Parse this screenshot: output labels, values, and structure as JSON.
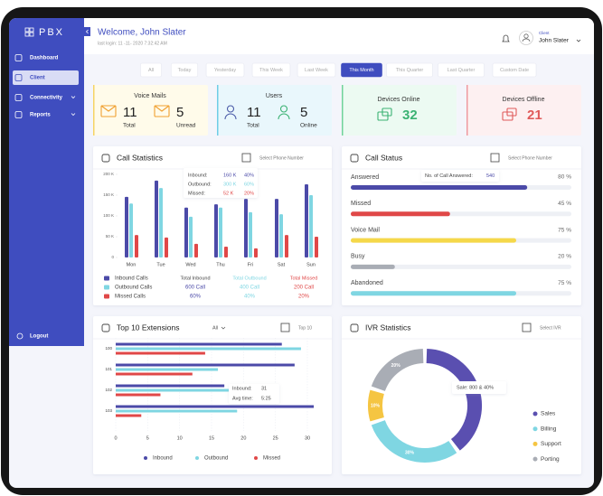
{
  "sidebar": {
    "logo": "PBX",
    "menu": [
      "Dashboard",
      "Client",
      "Connectivity",
      "Reports"
    ],
    "active": "Client",
    "logout": "Logout"
  },
  "header": {
    "welcome": "Welcome, John Slater",
    "last_login": "last login: 11 -11- 2020 7:32:42 AM",
    "role": "Client",
    "user": "John Slater"
  },
  "filters": {
    "tabs": [
      "All",
      "Today",
      "Yesterday",
      "This Week",
      "Last Week",
      "This Month",
      "This Quarter",
      "Last Quarter",
      "Custom Date"
    ],
    "active": "This Month"
  },
  "stats": [
    {
      "title": "Voice Mails",
      "items": [
        {
          "value": 11,
          "label": "Total"
        },
        {
          "value": 5,
          "label": "Unread"
        }
      ]
    },
    {
      "title": "Users",
      "items": [
        {
          "value": 11,
          "label": "Total"
        },
        {
          "value": 5,
          "label": "Online"
        }
      ]
    },
    {
      "title": "Devices Online",
      "value": 32
    },
    {
      "title": "Devices Offline",
      "value": 21
    }
  ],
  "call_statistics": {
    "title": "Call Statistics",
    "dropdown": "Select Phone Number",
    "categories": [
      "Mon",
      "Tue",
      "Wed",
      "Thu",
      "Fri",
      "Sat",
      "Sun"
    ],
    "ylim": [
      0,
      200000
    ],
    "yticks": [
      {
        "value": 0,
        "label": "0"
      },
      {
        "value": 50000,
        "label": "50 K"
      },
      {
        "value": 100000,
        "label": "100 K"
      },
      {
        "value": 150000,
        "label": "150 K"
      },
      {
        "value": 200000,
        "label": "200 K"
      }
    ],
    "series": [
      {
        "name": "Inbound Calls",
        "color": "#4b4aa8",
        "values": [
          146000,
          185000,
          120000,
          128000,
          141000,
          141000,
          176000
        ]
      },
      {
        "name": "Outbound Calls",
        "color": "#7fd6e2",
        "values": [
          130000,
          167000,
          98000,
          120000,
          109000,
          104000,
          150000
        ]
      },
      {
        "name": "Missed Calls",
        "color": "#e04848",
        "values": [
          54000,
          48000,
          33000,
          26000,
          22000,
          54000,
          50000
        ]
      }
    ],
    "tooltip": [
      {
        "label": "Inbound:",
        "value": "160 K",
        "percent": "40%"
      },
      {
        "label": "Outbound:",
        "value": "300 K",
        "percent": "60%"
      },
      {
        "label": "Missed:",
        "value": "52 K",
        "percent": "20%"
      }
    ],
    "totals": [
      {
        "title": "Total Inbound",
        "calls": "600 Call",
        "percent": "60%"
      },
      {
        "title": "Total Outbound",
        "calls": "400 Call",
        "percent": "40%"
      },
      {
        "title": "Total Missed",
        "calls": "200 Call",
        "percent": "20%"
      }
    ]
  },
  "call_status": {
    "title": "Call Status",
    "dropdown": "Select Phone Number",
    "rows": [
      {
        "label": "Answered",
        "value": 80,
        "value_label": "80 %",
        "color": "#4b4aa8"
      },
      {
        "label": "Missed",
        "value": 45,
        "value_label": "45 %",
        "color": "#e04848"
      },
      {
        "label": "Voice Mail",
        "value": 75,
        "value_label": "75 %",
        "color": "#f5d84a"
      },
      {
        "label": "Busy",
        "value": 20,
        "value_label": "20 %",
        "color": "#a9adb5"
      },
      {
        "label": "Abandoned",
        "value": 75,
        "value_label": "75 %",
        "color": "#7fd6e2"
      }
    ],
    "tooltip": {
      "label": "No. of Call Answered:",
      "value": 540
    }
  },
  "top_extensions": {
    "title": "Top 10 Extensions",
    "filter": "All",
    "dropdown": "Top 10",
    "categories": [
      "100",
      "101",
      "102",
      "103"
    ],
    "xlim": [
      0,
      30
    ],
    "xticks": [
      0,
      5,
      10,
      15,
      20,
      25,
      30
    ],
    "series": [
      {
        "name": "Inbound",
        "color": "#4b4aa8",
        "values": [
          26,
          28,
          17,
          31
        ]
      },
      {
        "name": "Outbound",
        "color": "#7fd6e2",
        "values": [
          29,
          16,
          22,
          19
        ]
      },
      {
        "name": "Missed",
        "color": "#e04848",
        "values": [
          14,
          12,
          7,
          4
        ]
      }
    ],
    "tooltip": [
      {
        "label": "Inbound:",
        "value": "31"
      },
      {
        "label": "Avg time:",
        "value": "5:25"
      }
    ]
  },
  "ivr": {
    "title": "IVR Statistics",
    "dropdown": "Select IVR",
    "type": "donut",
    "categories": [
      "Sales",
      "Billing",
      "Support",
      "Porting"
    ],
    "values": [
      40,
      30,
      10,
      20
    ],
    "value_labels": [
      "40%",
      "30%",
      "10%",
      "20%"
    ],
    "colors": [
      "#5a4fb0",
      "#7fd6e2",
      "#f5c542",
      "#a9adb5"
    ],
    "tooltip": "Sale: 800 & 40%"
  }
}
